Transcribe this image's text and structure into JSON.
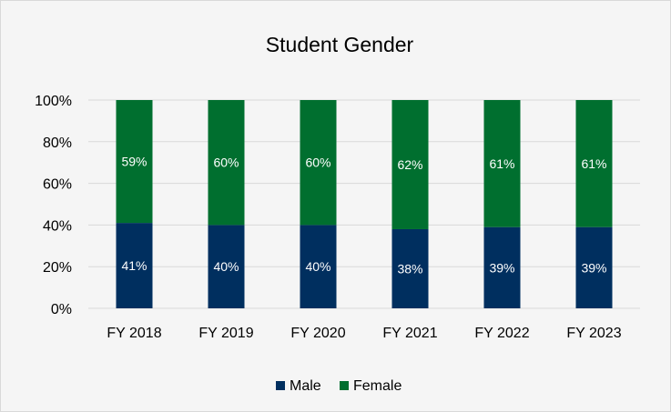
{
  "chart_data": {
    "type": "bar",
    "stacked": true,
    "percent": true,
    "title": "Student Gender",
    "categories": [
      "FY 2018",
      "FY 2019",
      "FY 2020",
      "FY 2021",
      "FY 2022",
      "FY 2023"
    ],
    "series": [
      {
        "name": "Male",
        "color": "#002f5f",
        "values": [
          41,
          40,
          40,
          38,
          39,
          39
        ],
        "labels": [
          "41%",
          "40%",
          "40%",
          "38%",
          "39%",
          "39%"
        ]
      },
      {
        "name": "Female",
        "color": "#006f2f",
        "values": [
          59,
          60,
          60,
          62,
          61,
          61
        ],
        "labels": [
          "59%",
          "60%",
          "60%",
          "62%",
          "61%",
          "61%"
        ]
      }
    ],
    "ylim": [
      0,
      100
    ],
    "yticks": [
      "0%",
      "20%",
      "40%",
      "60%",
      "80%",
      "100%"
    ],
    "grid": true,
    "legend": "bottom"
  }
}
